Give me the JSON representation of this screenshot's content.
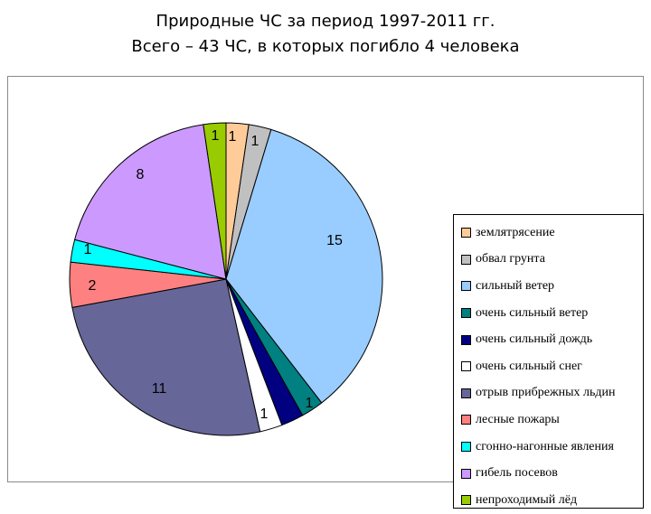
{
  "title_line1": "Природные ЧС за период 1997-2011 гг.",
  "title_line2": "Всего – 43 ЧС, в которых погибло 4 человека",
  "chart_data": {
    "type": "pie",
    "title": "Природные ЧС за период 1997-2011 гг. Всего – 43 ЧС, в которых погибло 4 человека",
    "legend_position": "right",
    "slices": [
      {
        "name": "землятрясение",
        "value": 1,
        "label": "1",
        "color": "#FFCC99"
      },
      {
        "name": "обвал грунта",
        "value": 1,
        "label": "1",
        "color": "#C0C0C0"
      },
      {
        "name": "сильный ветер",
        "value": 15,
        "label": "15",
        "color": "#99CCFF"
      },
      {
        "name": "очень сильный ветер",
        "value": 1,
        "label": "1",
        "color": "#008080"
      },
      {
        "name": "очень сильный дождь",
        "value": 1,
        "label": "",
        "color": "#000080"
      },
      {
        "name": "очень сильный снег",
        "value": 1,
        "label": "1",
        "color": "#FFFFFF"
      },
      {
        "name": "отрыв прибрежных льдин",
        "value": 11,
        "label": "11",
        "color": "#666699"
      },
      {
        "name": "лесные пожары",
        "value": 2,
        "label": "2",
        "color": "#FF8080"
      },
      {
        "name": "сгонно-нагонные явления",
        "value": 1,
        "label": "1",
        "color": "#00FFFF"
      },
      {
        "name": "гибель посевов",
        "value": 8,
        "label": "8",
        "color": "#CC99FF"
      },
      {
        "name": "непроходимый лёд",
        "value": 1,
        "label": "1",
        "color": "#99CC00"
      }
    ]
  }
}
